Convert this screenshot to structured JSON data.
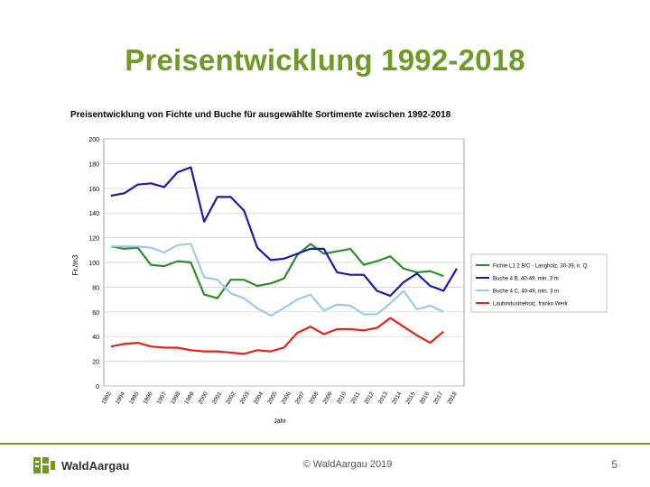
{
  "slide": {
    "title": "Preisentwicklung 1992-2018",
    "footer_copyright": "© WaldAargau 2019",
    "page_number": "5",
    "logo_text": "WaldAargau"
  },
  "colors": {
    "accent": "#6f9a2a",
    "fichte": "#2e8b2e",
    "buche_ab": "#1a1aa6",
    "buche_c": "#9ec9ea",
    "industrie": "#e0231c"
  },
  "chart_data": {
    "type": "line",
    "title": "Preisentwicklung von Fichte und Buche für ausgewählte Sortimente zwischen 1992-2018",
    "xlabel": "Jahr",
    "ylabel": "Fr./m3",
    "ylim": [
      0,
      200
    ],
    "yticks": [
      0,
      20,
      40,
      60,
      80,
      100,
      120,
      140,
      160,
      180,
      200
    ],
    "grid": true,
    "legend_position": "right",
    "categories": [
      "1992",
      "1993",
      "1994",
      "1995",
      "1996",
      "1997",
      "1998",
      "1999",
      "2000",
      "2001",
      "2002",
      "2003",
      "2004",
      "2005",
      "2006",
      "2007",
      "2008",
      "2009",
      "2010",
      "2011",
      "2012",
      "2013",
      "2014",
      "2015",
      "2016",
      "2017",
      "2018"
    ],
    "tick_labels": [
      "1992",
      "1994",
      "1995",
      "1996",
      "1997",
      "1998",
      "1999",
      "2000",
      "2001",
      "2002",
      "2003",
      "2004",
      "2005",
      "2006",
      "2007",
      "2008",
      "2009",
      "2010",
      "2011",
      "2012",
      "2013",
      "2014",
      "2015",
      "2016",
      "2017",
      "2018"
    ],
    "series": [
      {
        "name": "Fichte L1 2 B/C - Langholz, 30-39, n. Q",
        "color": "#2e8b2e",
        "values": [
          113,
          111,
          112,
          98,
          97,
          101,
          100,
          74,
          71,
          86,
          86,
          81,
          83,
          87,
          106,
          115,
          107,
          109,
          111,
          98,
          101,
          105,
          95,
          92,
          93,
          89,
          null
        ]
      },
      {
        "name": "Buche 4 B, 40-49, min. 3 m",
        "color": "#1a1aa6",
        "values": [
          154,
          156,
          163,
          164,
          161,
          173,
          177,
          133,
          153,
          153,
          142,
          112,
          102,
          103,
          107,
          111,
          111,
          92,
          90,
          90,
          77,
          73,
          84,
          91,
          81,
          77,
          95
        ]
      },
      {
        "name": "Buche 4 C, 40-49, min. 3 m",
        "color": "#9ec9ea",
        "values": [
          113,
          113,
          113,
          112,
          108,
          114,
          115,
          88,
          86,
          75,
          71,
          63,
          57,
          63,
          70,
          74,
          61,
          66,
          65,
          58,
          58,
          67,
          77,
          62,
          65,
          60,
          null
        ]
      },
      {
        "name": "Laubindustrieholz, franko Werk",
        "color": "#e0231c",
        "values": [
          32,
          34,
          35,
          32,
          31,
          31,
          29,
          28,
          28,
          27,
          26,
          29,
          28,
          31,
          43,
          48,
          42,
          46,
          46,
          45,
          47,
          55,
          48,
          41,
          35,
          44,
          null
        ]
      }
    ]
  }
}
